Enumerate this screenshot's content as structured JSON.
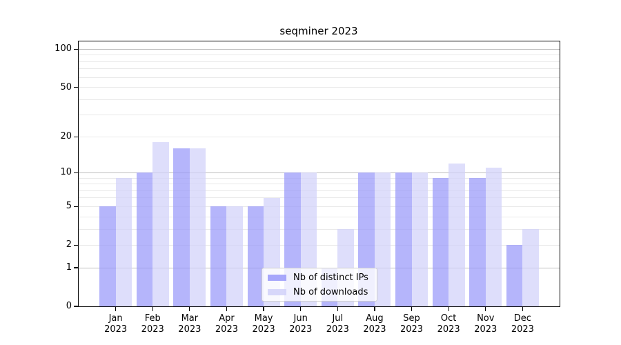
{
  "title": "seqminer 2023",
  "colors": {
    "ips": "rgba(153,153,250,0.85)",
    "downloads": "rgba(209,209,249,0.85)",
    "ips_solid": "#a8a8f8",
    "downloads_solid": "#d8d8f8",
    "grid_major": "#bdbdbd",
    "grid_minor": "#e9e9e9",
    "legend_bg": "rgba(255,255,255,0.8)",
    "legend_border": "#cccccc"
  },
  "legend": {
    "items": [
      {
        "key": "ips",
        "label": "Nb of distinct IPs"
      },
      {
        "key": "downloads",
        "label": "Nb of downloads"
      }
    ]
  },
  "y_axis": {
    "tick_values": [
      100,
      50,
      20,
      10,
      5,
      2,
      1,
      0
    ],
    "tick_labels": [
      "100",
      "50",
      "20",
      "10",
      "5",
      "2",
      "1",
      "0"
    ],
    "major_gridlines": [
      1,
      10,
      100
    ],
    "minor_gridlines": [
      2,
      3,
      4,
      5,
      6,
      7,
      8,
      9,
      20,
      30,
      40,
      50,
      60,
      70,
      80,
      90
    ]
  },
  "x_axis": {
    "ticks": [
      {
        "month": "Jan",
        "year": "2023"
      },
      {
        "month": "Feb",
        "year": "2023"
      },
      {
        "month": "Mar",
        "year": "2023"
      },
      {
        "month": "Apr",
        "year": "2023"
      },
      {
        "month": "May",
        "year": "2023"
      },
      {
        "month": "Jun",
        "year": "2023"
      },
      {
        "month": "Jul",
        "year": "2023"
      },
      {
        "month": "Aug",
        "year": "2023"
      },
      {
        "month": "Sep",
        "year": "2023"
      },
      {
        "month": "Oct",
        "year": "2023"
      },
      {
        "month": "Nov",
        "year": "2023"
      },
      {
        "month": "Dec",
        "year": "2023"
      }
    ]
  },
  "chart_data": {
    "type": "bar",
    "title": "seqminer 2023",
    "categories": [
      "Jan 2023",
      "Feb 2023",
      "Mar 2023",
      "Apr 2023",
      "May 2023",
      "Jun 2023",
      "Jul 2023",
      "Aug 2023",
      "Sep 2023",
      "Oct 2023",
      "Nov 2023",
      "Dec 2023"
    ],
    "series": [
      {
        "name": "Nb of distinct IPs",
        "key": "ips",
        "values": [
          5,
          10,
          16,
          5,
          5,
          10,
          1,
          10,
          10,
          9,
          9,
          2
        ]
      },
      {
        "name": "Nb of downloads",
        "key": "downloads",
        "values": [
          9,
          18,
          16,
          5,
          6,
          10,
          3,
          10,
          10,
          12,
          11,
          3
        ]
      }
    ],
    "y_scale": "log10(value+1)",
    "y_ticks": [
      0,
      1,
      2,
      5,
      10,
      20,
      50,
      100
    ],
    "ylim": [
      0,
      115
    ],
    "xlabel": "",
    "ylabel": "",
    "grid": "horizontal",
    "legend_position": "lower center"
  }
}
